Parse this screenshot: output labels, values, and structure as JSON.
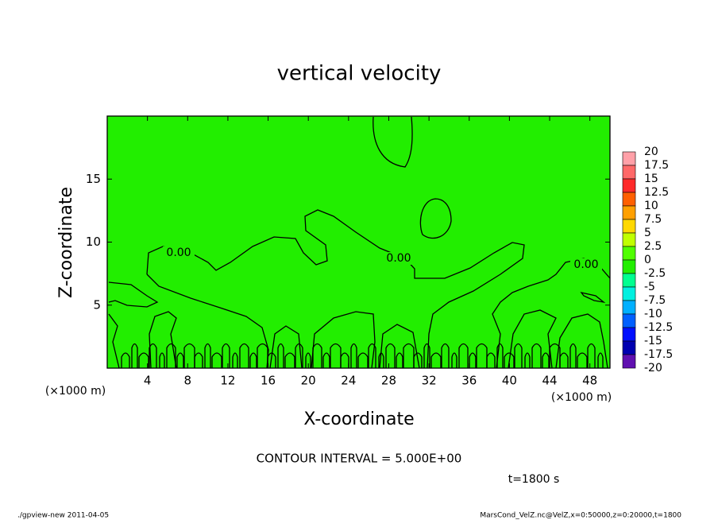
{
  "chart_data": {
    "type": "contour",
    "title": "vertical velocity",
    "xlabel": "X-coordinate",
    "ylabel": "Z-coordinate",
    "x_units": "(×1000 m)",
    "xlim": [
      0,
      50
    ],
    "xticks": [
      4,
      8,
      12,
      16,
      20,
      24,
      28,
      32,
      36,
      40,
      44,
      48
    ],
    "ylim": [
      0,
      20
    ],
    "yticks": [
      5,
      10,
      15
    ],
    "grid": false,
    "field_color": "#22ee00",
    "contour_levels": [
      {
        "value": 0,
        "label": "0.00"
      }
    ],
    "contour_interval": "CONTOUR INTERVAL = 5.000E+00",
    "time": "t=1800 s",
    "colorbar": {
      "levels": [
        20,
        17.5,
        15,
        12.5,
        10,
        7.5,
        5,
        2.5,
        0,
        -2.5,
        -5,
        -7.5,
        -10,
        -12.5,
        -15,
        -17.5,
        -20
      ],
      "colors": [
        "#ffa0a8",
        "#ff6868",
        "#ff2a2a",
        "#ff6000",
        "#ffa000",
        "#ffd800",
        "#c0ff00",
        "#50ff00",
        "#22ee00",
        "#00ff90",
        "#00f0e0",
        "#00b0ff",
        "#0060ff",
        "#0010ff",
        "#0000b0",
        "#6010b0"
      ]
    },
    "footer_left": "./gpview-new  2011-04-05",
    "footer_right": "MarsCond_VelZ.nc@VelZ,x=0:50000,z=0:20000,t=1800"
  }
}
